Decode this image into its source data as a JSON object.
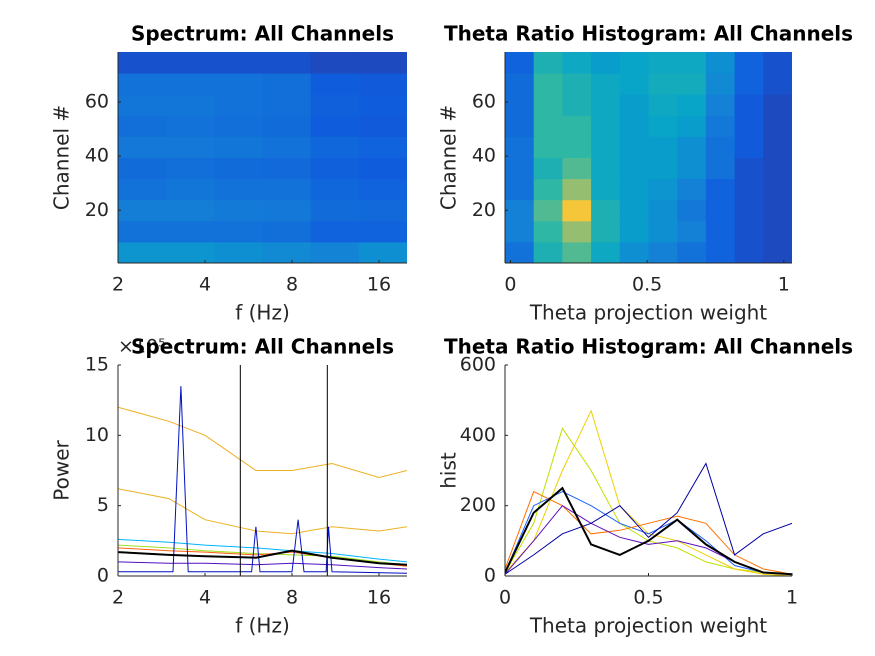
{
  "chart_data": [
    {
      "type": "heatmap",
      "title": "Spectrum: All Channels",
      "xlabel": "f (Hz)",
      "ylabel": "Channel #",
      "xlog": true,
      "xlim": [
        2,
        20
      ],
      "xticks": [
        2,
        4,
        8,
        16
      ],
      "ylim": [
        0.5,
        78.5
      ],
      "yticks": [
        20,
        40,
        60
      ],
      "clim": [
        0,
        1
      ],
      "colormap": [
        "#352a87",
        "#0f5cdd",
        "#1481d6",
        "#06a4ca",
        "#2eb7a4",
        "#87bf77",
        "#d1bb59",
        "#fec832",
        "#f9fb0e"
      ],
      "z": [
        [
          0.32,
          0.32,
          0.3,
          0.28,
          0.26,
          0.3
        ],
        [
          0.2,
          0.2,
          0.2,
          0.19,
          0.15,
          0.15
        ],
        [
          0.24,
          0.24,
          0.23,
          0.22,
          0.18,
          0.17
        ],
        [
          0.2,
          0.21,
          0.2,
          0.2,
          0.16,
          0.15
        ],
        [
          0.18,
          0.19,
          0.18,
          0.17,
          0.14,
          0.13
        ],
        [
          0.22,
          0.22,
          0.21,
          0.2,
          0.16,
          0.15
        ],
        [
          0.19,
          0.2,
          0.19,
          0.18,
          0.13,
          0.12
        ],
        [
          0.21,
          0.21,
          0.2,
          0.19,
          0.14,
          0.13
        ],
        [
          0.2,
          0.2,
          0.2,
          0.19,
          0.13,
          0.12
        ],
        [
          0.1,
          0.1,
          0.1,
          0.1,
          0.08,
          0.08
        ]
      ]
    },
    {
      "type": "heatmap",
      "title": "Theta Ratio Histogram: All Channels",
      "xlabel": "Theta projection weight",
      "ylabel": "Channel #",
      "xlim": [
        -0.02,
        1.03
      ],
      "xticks": [
        0,
        0.5,
        1
      ],
      "ylim": [
        0.5,
        78.5
      ],
      "yticks": [
        20,
        40,
        60
      ],
      "clim": [
        0,
        1
      ],
      "colormap": [
        "#352a87",
        "#0f5cdd",
        "#1481d6",
        "#06a4ca",
        "#2eb7a4",
        "#87bf77",
        "#d1bb59",
        "#fec832",
        "#f9fb0e"
      ],
      "z": [
        [
          0.2,
          0.45,
          0.55,
          0.4,
          0.3,
          0.25,
          0.2,
          0.15,
          0.1,
          0.08
        ],
        [
          0.25,
          0.5,
          0.65,
          0.45,
          0.35,
          0.3,
          0.25,
          0.15,
          0.1,
          0.08
        ],
        [
          0.25,
          0.55,
          0.85,
          0.45,
          0.35,
          0.3,
          0.22,
          0.15,
          0.1,
          0.08
        ],
        [
          0.2,
          0.5,
          0.65,
          0.4,
          0.35,
          0.32,
          0.25,
          0.15,
          0.1,
          0.08
        ],
        [
          0.2,
          0.45,
          0.55,
          0.4,
          0.35,
          0.35,
          0.3,
          0.2,
          0.1,
          0.08
        ],
        [
          0.2,
          0.5,
          0.5,
          0.4,
          0.35,
          0.35,
          0.3,
          0.2,
          0.12,
          0.08
        ],
        [
          0.18,
          0.5,
          0.5,
          0.4,
          0.35,
          0.38,
          0.35,
          0.22,
          0.12,
          0.08
        ],
        [
          0.18,
          0.5,
          0.45,
          0.4,
          0.35,
          0.4,
          0.38,
          0.25,
          0.12,
          0.08
        ],
        [
          0.18,
          0.5,
          0.45,
          0.4,
          0.38,
          0.42,
          0.42,
          0.28,
          0.15,
          0.1
        ],
        [
          0.15,
          0.45,
          0.4,
          0.35,
          0.38,
          0.4,
          0.4,
          0.3,
          0.15,
          0.1
        ]
      ]
    },
    {
      "type": "line",
      "title": "Spectrum: All Channels",
      "xlabel": "f (Hz)",
      "ylabel": "Power",
      "exponent_label": "×10⁵",
      "xlog": true,
      "xlim": [
        2,
        20
      ],
      "xticks": [
        2,
        4,
        8,
        16
      ],
      "ylim": [
        0,
        15
      ],
      "yticks": [
        0,
        5,
        10,
        15
      ],
      "x": [
        2,
        3,
        4,
        6,
        8,
        11,
        16,
        20
      ],
      "vlines": [
        5.3,
        10.6
      ],
      "series": [
        {
          "color": "#edb120",
          "values": [
            12,
            11,
            10,
            7.5,
            7.5,
            8,
            7,
            7.5
          ]
        },
        {
          "color": "#edb120",
          "values": [
            6.2,
            5.5,
            4,
            3.2,
            3,
            3.5,
            3.2,
            3.5
          ]
        },
        {
          "color": "#00b4ff",
          "values": [
            2.6,
            2.4,
            2.2,
            2,
            1.8,
            1.6,
            1.2,
            1
          ]
        },
        {
          "color": "#a0e020",
          "values": [
            2.2,
            2,
            1.8,
            1.6,
            1.5,
            1.4,
            1,
            0.8
          ]
        },
        {
          "color": "#ff6010",
          "values": [
            2,
            1.8,
            1.7,
            1.5,
            1.7,
            1.3,
            0.9,
            0.7
          ]
        },
        {
          "color": "#5010c0",
          "values": [
            1,
            0.9,
            0.9,
            0.8,
            0.9,
            0.8,
            0.6,
            0.5
          ]
        },
        {
          "color": "#0010c0",
          "x": [
            2,
            3.1,
            3.3,
            3.5,
            5.8,
            6,
            6.2,
            8,
            8.4,
            8.8,
            10.5,
            10.7,
            11,
            20
          ],
          "values": [
            0.3,
            0.3,
            13.5,
            0.3,
            0.3,
            3.5,
            0.3,
            0.3,
            4,
            0.3,
            0.3,
            3.5,
            0.3,
            0.2
          ]
        },
        {
          "color": "#000000",
          "values": [
            1.7,
            1.5,
            1.4,
            1.3,
            1.8,
            1.3,
            0.9,
            0.8
          ]
        }
      ]
    },
    {
      "type": "line",
      "title": "Theta Ratio Histogram: All Channels",
      "xlabel": "Theta projection weight",
      "ylabel": "hist",
      "xlim": [
        0,
        1
      ],
      "xticks": [
        0,
        0.5,
        1
      ],
      "ylim": [
        0,
        600
      ],
      "yticks": [
        0,
        200,
        400,
        600
      ],
      "x": [
        0,
        0.1,
        0.2,
        0.3,
        0.4,
        0.5,
        0.6,
        0.7,
        0.8,
        0.9,
        1
      ],
      "series": [
        {
          "color": "#c0e000",
          "values": [
            10,
            150,
            420,
            300,
            150,
            100,
            80,
            40,
            20,
            10,
            5
          ]
        },
        {
          "color": "#f0d000",
          "values": [
            10,
            100,
            300,
            470,
            200,
            120,
            100,
            60,
            20,
            5,
            0
          ]
        },
        {
          "color": "#2060ff",
          "values": [
            10,
            200,
            240,
            200,
            150,
            120,
            160,
            100,
            30,
            10,
            5
          ]
        },
        {
          "color": "#ff7000",
          "values": [
            20,
            240,
            200,
            120,
            130,
            150,
            170,
            150,
            60,
            20,
            5
          ]
        },
        {
          "color": "#6010c0",
          "values": [
            5,
            100,
            200,
            150,
            110,
            90,
            100,
            80,
            40,
            10,
            5
          ]
        },
        {
          "color": "#0000a0",
          "values": [
            5,
            60,
            120,
            150,
            200,
            110,
            180,
            320,
            60,
            120,
            150
          ]
        },
        {
          "color": "#000000",
          "values": [
            10,
            180,
            250,
            90,
            60,
            100,
            160,
            90,
            40,
            10,
            5
          ]
        }
      ]
    }
  ]
}
